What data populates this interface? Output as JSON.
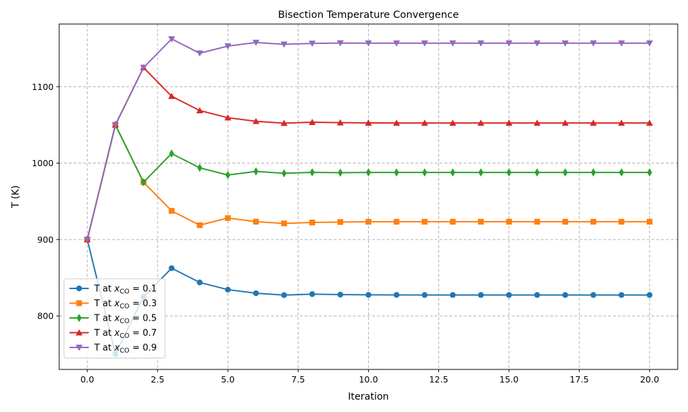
{
  "chart_data": {
    "type": "line",
    "title": "Bisection Temperature Convergence",
    "xlabel": "Iteration",
    "ylabel": "T (K)",
    "xlim": [
      -1.0,
      21.0
    ],
    "ylim": [
      730,
      1182
    ],
    "x_ticks": [
      0.0,
      2.5,
      5.0,
      7.5,
      10.0,
      12.5,
      15.0,
      17.5,
      20.0
    ],
    "x_tick_labels": [
      "0.0",
      "2.5",
      "5.0",
      "7.5",
      "10.0",
      "12.5",
      "15.0",
      "17.5",
      "20.0"
    ],
    "y_ticks": [
      800,
      900,
      1000,
      1100
    ],
    "y_tick_labels": [
      "800",
      "900",
      "1000",
      "1100"
    ],
    "grid": true,
    "legend_position": "lower-left",
    "x": [
      0,
      1,
      2,
      3,
      4,
      5,
      6,
      7,
      8,
      9,
      10,
      11,
      12,
      13,
      14,
      15,
      16,
      17,
      18,
      19,
      20
    ],
    "series": [
      {
        "name_prefix": "T at ",
        "name_var": "x",
        "name_sub": "CO",
        "name_suffix": " = 0.1",
        "color": "#1f77b4",
        "marker": "circle",
        "values": [
          900,
          750,
          825,
          862.5,
          843.8,
          834.4,
          829.7,
          827.3,
          828.5,
          827.9,
          827.6,
          827.5,
          827.4,
          827.4,
          827.4,
          827.4,
          827.4,
          827.4,
          827.4,
          827.4,
          827.4
        ]
      },
      {
        "name_prefix": "T at ",
        "name_var": "x",
        "name_sub": "CO",
        "name_suffix": " = 0.3",
        "color": "#ff7f0e",
        "marker": "square",
        "values": [
          900,
          1050,
          975,
          937.5,
          918.8,
          928.1,
          923.4,
          921.1,
          922.3,
          922.9,
          923.2,
          923.3,
          923.3,
          923.3,
          923.3,
          923.3,
          923.3,
          923.3,
          923.3,
          923.3,
          923.3
        ]
      },
      {
        "name_prefix": "T at ",
        "name_var": "x",
        "name_sub": "CO",
        "name_suffix": " = 0.5",
        "color": "#2ca02c",
        "marker": "thin_diamond",
        "values": [
          900,
          1050,
          975,
          1012.5,
          993.8,
          984.4,
          989.1,
          986.7,
          987.9,
          987.5,
          987.8,
          987.8,
          987.8,
          987.8,
          987.8,
          987.8,
          987.8,
          987.8,
          987.8,
          987.8,
          987.8
        ]
      },
      {
        "name_prefix": "T at ",
        "name_var": "x",
        "name_sub": "CO",
        "name_suffix": " = 0.7",
        "color": "#d62728",
        "marker": "triangle_up",
        "values": [
          900,
          1050,
          1125,
          1087.5,
          1068.8,
          1059.4,
          1054.7,
          1052.3,
          1053.5,
          1052.9,
          1052.6,
          1052.5,
          1052.5,
          1052.5,
          1052.5,
          1052.5,
          1052.5,
          1052.5,
          1052.5,
          1052.5,
          1052.5
        ]
      },
      {
        "name_prefix": "T at ",
        "name_var": "x",
        "name_sub": "CO",
        "name_suffix": " = 0.9",
        "color": "#9467bd",
        "marker": "triangle_down",
        "values": [
          900,
          1050,
          1125,
          1162.5,
          1143.8,
          1153.1,
          1157.8,
          1155.5,
          1156.6,
          1157.2,
          1156.9,
          1156.9,
          1156.9,
          1156.9,
          1156.9,
          1156.9,
          1156.9,
          1156.9,
          1156.9,
          1156.9,
          1156.9
        ]
      }
    ]
  }
}
